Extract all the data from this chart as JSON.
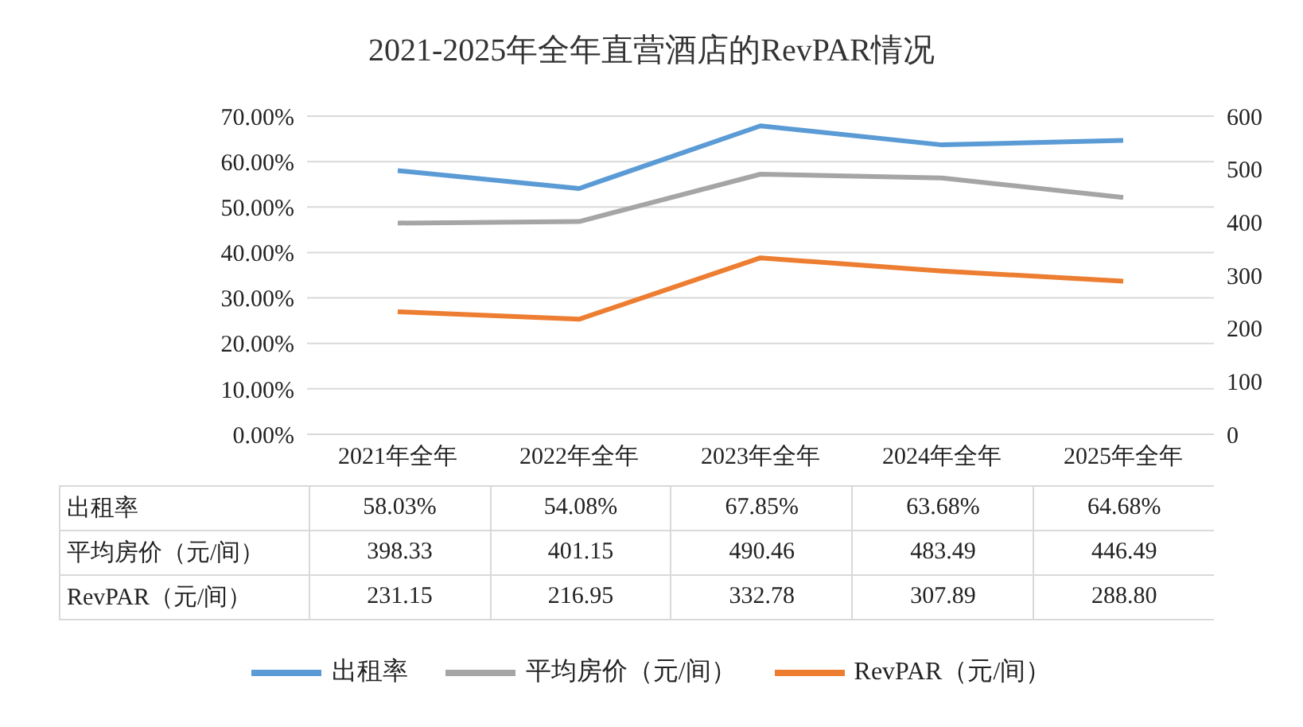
{
  "chart_data": {
    "type": "line",
    "title": "2021-2025年全年直营酒店的RevPAR情况",
    "categories": [
      "2021年全年",
      "2022年全年",
      "2023年全年",
      "2024年全年",
      "2025年全年"
    ],
    "series": [
      {
        "name": "出租率",
        "color": "#5b9bd5",
        "values": [
          58.03,
          54.08,
          67.85,
          63.68,
          64.68
        ],
        "value_labels": [
          "58.03%",
          "54.08%",
          "67.85%",
          "63.68%",
          "64.68%"
        ]
      },
      {
        "name": "平均房价（元/间）",
        "color": "#a5a5a5",
        "axis": "y2",
        "values": [
          398.33,
          401.15,
          490.46,
          483.49,
          446.49
        ],
        "value_labels": [
          "398.33",
          "401.15",
          "490.46",
          "483.49",
          "446.49"
        ]
      },
      {
        "name": "RevPAR（元/间）",
        "color": "#ed7d31",
        "axis": "y2",
        "values": [
          231.15,
          216.95,
          332.78,
          307.89,
          288.8
        ],
        "value_labels": [
          "231.15",
          "216.95",
          "332.78",
          "307.89",
          "288.80"
        ]
      }
    ],
    "ylim": [
      0,
      70
    ],
    "yticks": [
      {
        "value": 0,
        "label": "0.00%"
      },
      {
        "value": 10,
        "label": "10.00%"
      },
      {
        "value": 20,
        "label": "20.00%"
      },
      {
        "value": 30,
        "label": "30.00%"
      },
      {
        "value": 40,
        "label": "40.00%"
      },
      {
        "value": 50,
        "label": "50.00%"
      },
      {
        "value": 60,
        "label": "60.00%"
      },
      {
        "value": 70,
        "label": "70.00%"
      }
    ],
    "y2lim": [
      0,
      600
    ],
    "y2ticks": [
      0,
      100,
      200,
      300,
      400,
      500,
      600
    ],
    "grid": "y",
    "legend": "bottom",
    "marker": "none",
    "line_style": "solid"
  }
}
